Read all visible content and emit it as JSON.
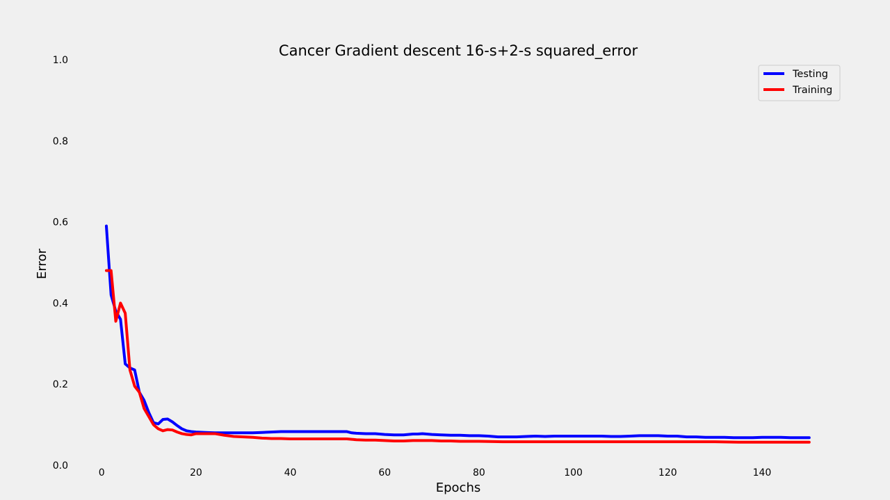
{
  "chart_data": {
    "type": "line",
    "title": "Cancer Gradient descent 16-s+2-s squared_error",
    "xlabel": "Epochs",
    "ylabel": "Error",
    "xlim": [
      -1.5,
      151.5
    ],
    "ylim": [
      0.0,
      1.0
    ],
    "xticks": [
      0,
      20,
      40,
      60,
      80,
      100,
      120,
      140
    ],
    "yticks": [
      0.0,
      0.2,
      0.4,
      0.6,
      0.8,
      1.0
    ],
    "grid": false,
    "legend_position": "upper right",
    "series": [
      {
        "name": "Testing",
        "color": "#0000ff",
        "x": [
          1,
          2,
          3,
          4,
          5,
          6,
          7,
          8,
          9,
          10,
          11,
          12,
          13,
          14,
          15,
          16,
          17,
          18,
          19,
          20,
          22,
          24,
          26,
          28,
          30,
          32,
          34,
          36,
          38,
          40,
          42,
          44,
          46,
          48,
          50,
          52,
          53,
          54,
          56,
          58,
          60,
          62,
          64,
          66,
          67,
          68,
          70,
          72,
          74,
          76,
          78,
          80,
          82,
          84,
          86,
          88,
          90,
          92,
          94,
          96,
          98,
          100,
          102,
          104,
          106,
          108,
          110,
          112,
          114,
          116,
          118,
          120,
          122,
          124,
          126,
          128,
          130,
          132,
          134,
          136,
          138,
          140,
          142,
          144,
          146,
          148,
          150
        ],
        "y": [
          0.59,
          0.42,
          0.38,
          0.36,
          0.25,
          0.24,
          0.235,
          0.18,
          0.16,
          0.13,
          0.105,
          0.102,
          0.113,
          0.114,
          0.107,
          0.098,
          0.09,
          0.085,
          0.083,
          0.082,
          0.081,
          0.08,
          0.08,
          0.08,
          0.08,
          0.08,
          0.081,
          0.082,
          0.083,
          0.083,
          0.083,
          0.083,
          0.083,
          0.083,
          0.083,
          0.083,
          0.08,
          0.079,
          0.078,
          0.078,
          0.076,
          0.075,
          0.075,
          0.077,
          0.077,
          0.078,
          0.076,
          0.075,
          0.074,
          0.074,
          0.073,
          0.073,
          0.072,
          0.07,
          0.07,
          0.07,
          0.071,
          0.072,
          0.071,
          0.072,
          0.072,
          0.072,
          0.072,
          0.072,
          0.072,
          0.071,
          0.071,
          0.072,
          0.073,
          0.073,
          0.073,
          0.072,
          0.072,
          0.07,
          0.07,
          0.069,
          0.069,
          0.069,
          0.068,
          0.068,
          0.068,
          0.069,
          0.069,
          0.069,
          0.068,
          0.068,
          0.068
        ]
      },
      {
        "name": "Training",
        "color": "#ff0000",
        "x": [
          1,
          2,
          3,
          4,
          5,
          6,
          7,
          8,
          9,
          10,
          11,
          12,
          13,
          14,
          15,
          16,
          17,
          18,
          19,
          20,
          22,
          24,
          26,
          28,
          30,
          32,
          34,
          36,
          38,
          40,
          42,
          44,
          46,
          48,
          50,
          52,
          53,
          54,
          56,
          58,
          60,
          62,
          64,
          66,
          68,
          70,
          72,
          74,
          76,
          78,
          80,
          85,
          90,
          95,
          100,
          105,
          110,
          115,
          120,
          125,
          130,
          135,
          140,
          145,
          150
        ],
        "y": [
          0.48,
          0.48,
          0.355,
          0.4,
          0.375,
          0.235,
          0.195,
          0.18,
          0.14,
          0.12,
          0.1,
          0.09,
          0.085,
          0.088,
          0.087,
          0.082,
          0.078,
          0.076,
          0.075,
          0.078,
          0.078,
          0.078,
          0.074,
          0.071,
          0.07,
          0.069,
          0.067,
          0.066,
          0.066,
          0.065,
          0.065,
          0.065,
          0.065,
          0.065,
          0.065,
          0.065,
          0.064,
          0.063,
          0.062,
          0.062,
          0.061,
          0.06,
          0.06,
          0.061,
          0.061,
          0.061,
          0.06,
          0.06,
          0.059,
          0.059,
          0.059,
          0.058,
          0.058,
          0.058,
          0.058,
          0.058,
          0.058,
          0.058,
          0.058,
          0.058,
          0.058,
          0.057,
          0.057,
          0.057,
          0.057
        ]
      }
    ]
  }
}
